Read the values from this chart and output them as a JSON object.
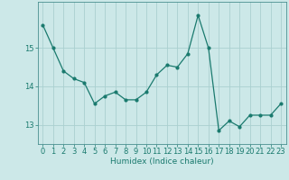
{
  "x": [
    0,
    1,
    2,
    3,
    4,
    5,
    6,
    7,
    8,
    9,
    10,
    11,
    12,
    13,
    14,
    15,
    16,
    17,
    18,
    19,
    20,
    21,
    22,
    23
  ],
  "y": [
    15.6,
    15.0,
    14.4,
    14.2,
    14.1,
    13.55,
    13.75,
    13.85,
    13.65,
    13.65,
    13.85,
    14.3,
    14.55,
    14.5,
    14.85,
    15.85,
    15.0,
    12.85,
    13.1,
    12.95,
    13.25,
    13.25,
    13.25,
    13.55
  ],
  "xlabel": "Humidex (Indice chaleur)",
  "yticks": [
    13,
    14,
    15
  ],
  "xticks": [
    0,
    1,
    2,
    3,
    4,
    5,
    6,
    7,
    8,
    9,
    10,
    11,
    12,
    13,
    14,
    15,
    16,
    17,
    18,
    19,
    20,
    21,
    22,
    23
  ],
  "line_color": "#1a7a6e",
  "bg_color": "#cce8e8",
  "grid_color": "#aad0d0",
  "ylim": [
    12.5,
    16.2
  ],
  "xlim": [
    -0.5,
    23.5
  ],
  "tick_fontsize": 6.0,
  "xlabel_fontsize": 6.5
}
